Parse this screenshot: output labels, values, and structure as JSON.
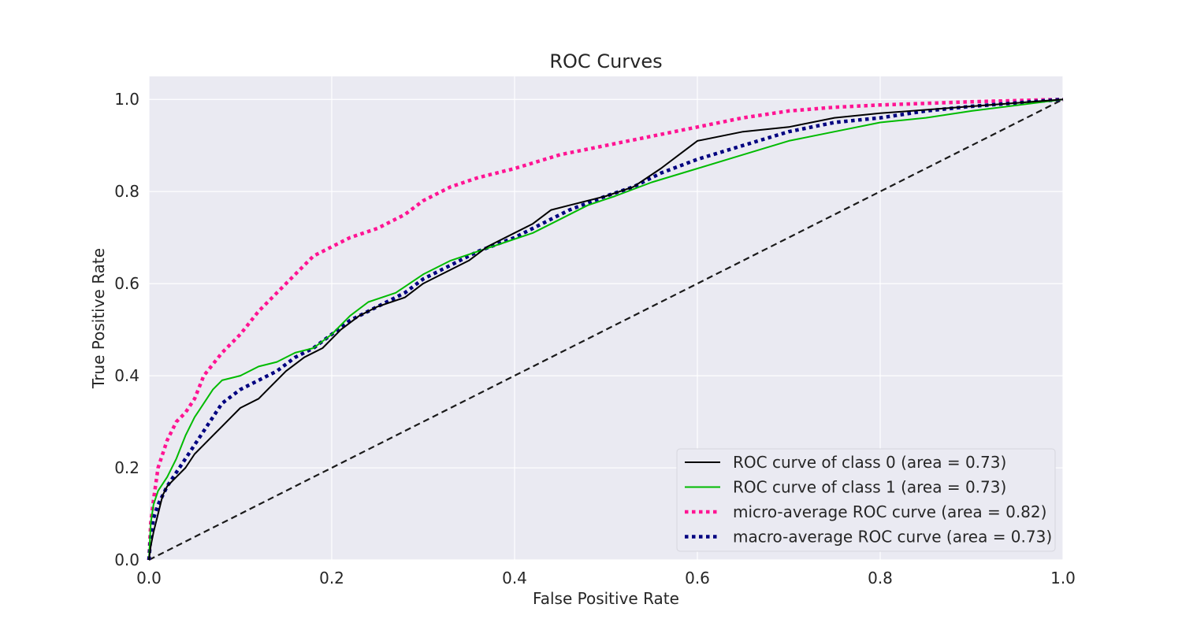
{
  "chart_data": {
    "type": "line",
    "title": "ROC Curves",
    "xlabel": "False Positive Rate",
    "ylabel": "True Positive Rate",
    "xlim": [
      0.0,
      1.0
    ],
    "ylim": [
      0.0,
      1.05
    ],
    "x_ticks": [
      "0.0",
      "0.2",
      "0.4",
      "0.6",
      "0.8",
      "1.0"
    ],
    "y_ticks": [
      "0.0",
      "0.2",
      "0.4",
      "0.6",
      "0.8",
      "1.0"
    ],
    "grid": true,
    "legend_position": "lower-right",
    "series": [
      {
        "name": "ROC curve of class 0 (area = 0.73)",
        "color": "#000000",
        "style": "solid",
        "points": [
          [
            0.0,
            0.0
          ],
          [
            0.002,
            0.03
          ],
          [
            0.005,
            0.06
          ],
          [
            0.01,
            0.1
          ],
          [
            0.015,
            0.14
          ],
          [
            0.02,
            0.16
          ],
          [
            0.03,
            0.18
          ],
          [
            0.04,
            0.2
          ],
          [
            0.05,
            0.23
          ],
          [
            0.06,
            0.25
          ],
          [
            0.07,
            0.27
          ],
          [
            0.08,
            0.29
          ],
          [
            0.09,
            0.31
          ],
          [
            0.1,
            0.33
          ],
          [
            0.12,
            0.35
          ],
          [
            0.13,
            0.37
          ],
          [
            0.15,
            0.41
          ],
          [
            0.17,
            0.44
          ],
          [
            0.19,
            0.46
          ],
          [
            0.21,
            0.5
          ],
          [
            0.23,
            0.53
          ],
          [
            0.25,
            0.55
          ],
          [
            0.28,
            0.57
          ],
          [
            0.3,
            0.6
          ],
          [
            0.32,
            0.62
          ],
          [
            0.35,
            0.65
          ],
          [
            0.37,
            0.68
          ],
          [
            0.4,
            0.71
          ],
          [
            0.42,
            0.73
          ],
          [
            0.44,
            0.76
          ],
          [
            0.46,
            0.77
          ],
          [
            0.5,
            0.79
          ],
          [
            0.53,
            0.81
          ],
          [
            0.56,
            0.85
          ],
          [
            0.58,
            0.88
          ],
          [
            0.6,
            0.91
          ],
          [
            0.65,
            0.93
          ],
          [
            0.7,
            0.94
          ],
          [
            0.75,
            0.96
          ],
          [
            0.8,
            0.97
          ],
          [
            0.9,
            0.985
          ],
          [
            1.0,
            1.0
          ]
        ]
      },
      {
        "name": "ROC curve of class 1 (area = 0.73)",
        "color": "#00bb00",
        "style": "solid",
        "points": [
          [
            0.0,
            0.0
          ],
          [
            0.002,
            0.08
          ],
          [
            0.005,
            0.12
          ],
          [
            0.01,
            0.15
          ],
          [
            0.02,
            0.18
          ],
          [
            0.03,
            0.22
          ],
          [
            0.04,
            0.27
          ],
          [
            0.05,
            0.31
          ],
          [
            0.06,
            0.34
          ],
          [
            0.07,
            0.37
          ],
          [
            0.08,
            0.39
          ],
          [
            0.1,
            0.4
          ],
          [
            0.12,
            0.42
          ],
          [
            0.14,
            0.43
          ],
          [
            0.16,
            0.45
          ],
          [
            0.18,
            0.46
          ],
          [
            0.2,
            0.49
          ],
          [
            0.22,
            0.53
          ],
          [
            0.24,
            0.56
          ],
          [
            0.27,
            0.58
          ],
          [
            0.3,
            0.62
          ],
          [
            0.33,
            0.65
          ],
          [
            0.36,
            0.67
          ],
          [
            0.39,
            0.69
          ],
          [
            0.42,
            0.71
          ],
          [
            0.45,
            0.74
          ],
          [
            0.48,
            0.77
          ],
          [
            0.51,
            0.79
          ],
          [
            0.55,
            0.82
          ],
          [
            0.6,
            0.85
          ],
          [
            0.65,
            0.88
          ],
          [
            0.7,
            0.91
          ],
          [
            0.75,
            0.93
          ],
          [
            0.8,
            0.95
          ],
          [
            0.85,
            0.96
          ],
          [
            0.9,
            0.975
          ],
          [
            1.0,
            1.0
          ]
        ]
      },
      {
        "name": "micro-average ROC curve (area = 0.82)",
        "color": "#ff1493",
        "style": "dotted",
        "points": [
          [
            0.0,
            0.0
          ],
          [
            0.002,
            0.08
          ],
          [
            0.005,
            0.13
          ],
          [
            0.01,
            0.2
          ],
          [
            0.02,
            0.26
          ],
          [
            0.03,
            0.3
          ],
          [
            0.04,
            0.32
          ],
          [
            0.05,
            0.35
          ],
          [
            0.06,
            0.4
          ],
          [
            0.08,
            0.45
          ],
          [
            0.1,
            0.49
          ],
          [
            0.12,
            0.54
          ],
          [
            0.14,
            0.58
          ],
          [
            0.16,
            0.62
          ],
          [
            0.18,
            0.66
          ],
          [
            0.2,
            0.68
          ],
          [
            0.22,
            0.7
          ],
          [
            0.25,
            0.72
          ],
          [
            0.28,
            0.75
          ],
          [
            0.3,
            0.78
          ],
          [
            0.33,
            0.81
          ],
          [
            0.36,
            0.83
          ],
          [
            0.4,
            0.85
          ],
          [
            0.45,
            0.88
          ],
          [
            0.5,
            0.9
          ],
          [
            0.55,
            0.92
          ],
          [
            0.6,
            0.94
          ],
          [
            0.65,
            0.96
          ],
          [
            0.7,
            0.975
          ],
          [
            0.75,
            0.983
          ],
          [
            0.8,
            0.988
          ],
          [
            0.9,
            0.995
          ],
          [
            1.0,
            1.0
          ]
        ]
      },
      {
        "name": "macro-average ROC curve (area = 0.73)",
        "color": "#000080",
        "style": "dotted",
        "points": [
          [
            0.0,
            0.0
          ],
          [
            0.002,
            0.05
          ],
          [
            0.005,
            0.09
          ],
          [
            0.01,
            0.12
          ],
          [
            0.02,
            0.16
          ],
          [
            0.03,
            0.19
          ],
          [
            0.04,
            0.22
          ],
          [
            0.05,
            0.25
          ],
          [
            0.06,
            0.28
          ],
          [
            0.07,
            0.31
          ],
          [
            0.08,
            0.34
          ],
          [
            0.1,
            0.37
          ],
          [
            0.12,
            0.39
          ],
          [
            0.14,
            0.41
          ],
          [
            0.16,
            0.44
          ],
          [
            0.18,
            0.46
          ],
          [
            0.2,
            0.49
          ],
          [
            0.22,
            0.52
          ],
          [
            0.25,
            0.55
          ],
          [
            0.28,
            0.58
          ],
          [
            0.3,
            0.61
          ],
          [
            0.33,
            0.64
          ],
          [
            0.36,
            0.67
          ],
          [
            0.4,
            0.7
          ],
          [
            0.43,
            0.73
          ],
          [
            0.46,
            0.76
          ],
          [
            0.5,
            0.79
          ],
          [
            0.53,
            0.81
          ],
          [
            0.56,
            0.84
          ],
          [
            0.6,
            0.87
          ],
          [
            0.65,
            0.9
          ],
          [
            0.7,
            0.93
          ],
          [
            0.75,
            0.95
          ],
          [
            0.8,
            0.96
          ],
          [
            0.85,
            0.975
          ],
          [
            0.9,
            0.985
          ],
          [
            1.0,
            1.0
          ]
        ]
      },
      {
        "name": "",
        "color": "#1a1a1a",
        "style": "dashed",
        "points": [
          [
            0.0,
            0.0
          ],
          [
            1.0,
            1.0
          ]
        ]
      }
    ]
  }
}
